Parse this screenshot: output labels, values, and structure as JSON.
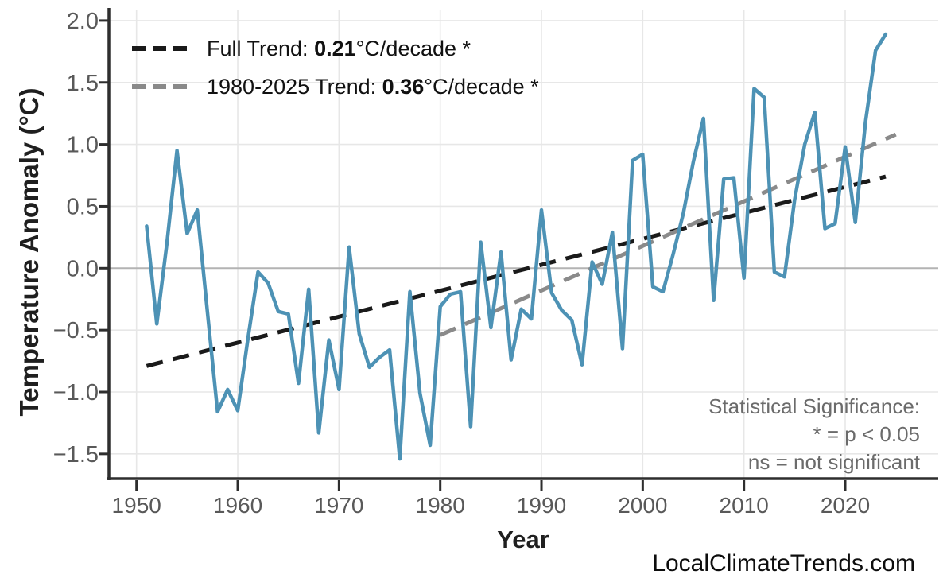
{
  "watermark": "LocalClimateTrends.com",
  "y_axis": {
    "title": "Temperature Anomaly (°C)",
    "ticks": [
      "2.0",
      "1.5",
      "1.0",
      "0.5",
      "0.0",
      "−0.5",
      "−1.0",
      "−1.5"
    ],
    "tick_values": [
      2.0,
      1.5,
      1.0,
      0.5,
      0.0,
      -0.5,
      -1.0,
      -1.5
    ]
  },
  "x_axis": {
    "title": "Year",
    "ticks": [
      "1950",
      "1960",
      "1970",
      "1980",
      "1990",
      "2000",
      "2010",
      "2020"
    ],
    "tick_values": [
      1950,
      1960,
      1970,
      1980,
      1990,
      2000,
      2010,
      2020
    ]
  },
  "legend": {
    "items": [
      {
        "prefix": "Full Trend: ",
        "value": "0.21",
        "suffix": "°C/decade *",
        "color": "#1a1a1a"
      },
      {
        "prefix": "1980-2025 Trend: ",
        "value": "0.36",
        "suffix": "°C/decade *",
        "color": "#8a8a8a"
      }
    ]
  },
  "annotation": {
    "lines": [
      "Statistical Significance:",
      "* = p < 0.05",
      "ns = not significant"
    ]
  },
  "colors": {
    "data_line": "#4D92B5",
    "full_trend": "#1a1a1a",
    "recent_trend": "#8a8a8a",
    "gridline": "#e7e7e7",
    "zero_line": "#b3b3b3",
    "spine": "#2e2e2e",
    "tick_label": "#595959"
  },
  "chart_data": {
    "type": "line",
    "title": "",
    "xlabel": "Year",
    "ylabel": "Temperature Anomaly (°C)",
    "xlim": [
      1947.3,
      2029.2
    ],
    "ylim": [
      -1.7,
      2.09
    ],
    "grid": true,
    "legend_position": "upper-left",
    "x": [
      1951,
      1952,
      1953,
      1954,
      1955,
      1956,
      1957,
      1958,
      1959,
      1960,
      1961,
      1962,
      1963,
      1964,
      1965,
      1966,
      1967,
      1968,
      1969,
      1970,
      1971,
      1972,
      1973,
      1974,
      1975,
      1976,
      1977,
      1978,
      1979,
      1980,
      1981,
      1982,
      1983,
      1984,
      1985,
      1986,
      1987,
      1988,
      1989,
      1990,
      1991,
      1992,
      1993,
      1994,
      1995,
      1996,
      1997,
      1998,
      1999,
      2000,
      2001,
      2002,
      2003,
      2004,
      2005,
      2006,
      2007,
      2008,
      2009,
      2010,
      2011,
      2012,
      2013,
      2014,
      2015,
      2016,
      2017,
      2018,
      2019,
      2020,
      2021,
      2022,
      2023,
      2024
    ],
    "series": [
      {
        "name": "Annual temperature anomaly",
        "type": "line",
        "color": "#4D92B5",
        "values": [
          0.34,
          -0.45,
          0.2,
          0.95,
          0.28,
          0.47,
          -0.35,
          -1.16,
          -0.98,
          -1.15,
          -0.57,
          -0.03,
          -0.12,
          -0.35,
          -0.37,
          -0.93,
          -0.17,
          -1.33,
          -0.58,
          -0.98,
          0.17,
          -0.53,
          -0.8,
          -0.72,
          -0.66,
          -1.54,
          -0.19,
          -1.01,
          -1.43,
          -0.31,
          -0.21,
          -0.19,
          -1.28,
          0.21,
          -0.48,
          0.13,
          -0.74,
          -0.33,
          -0.41,
          0.47,
          -0.2,
          -0.34,
          -0.42,
          -0.78,
          0.05,
          -0.13,
          0.29,
          -0.65,
          0.87,
          0.92,
          -0.15,
          -0.19,
          0.11,
          0.44,
          0.86,
          1.21,
          -0.26,
          0.72,
          0.73,
          -0.08,
          1.45,
          1.38,
          -0.03,
          -0.07,
          0.55,
          1.0,
          1.26,
          0.32,
          0.36,
          0.98,
          0.37,
          1.18,
          1.76,
          1.89
        ]
      },
      {
        "name": "Full Trend: 0.21°C/decade *",
        "type": "trend",
        "color": "#1a1a1a",
        "dashed": true,
        "slope_per_decade": 0.21,
        "significant": true,
        "x": [
          1951,
          2024
        ],
        "values": [
          -0.79,
          0.74
        ]
      },
      {
        "name": "1980-2025 Trend: 0.36°C/decade *",
        "type": "trend",
        "color": "#8a8a8a",
        "dashed": true,
        "slope_per_decade": 0.36,
        "significant": true,
        "x": [
          1980,
          2025
        ],
        "values": [
          -0.54,
          1.08
        ]
      }
    ]
  }
}
